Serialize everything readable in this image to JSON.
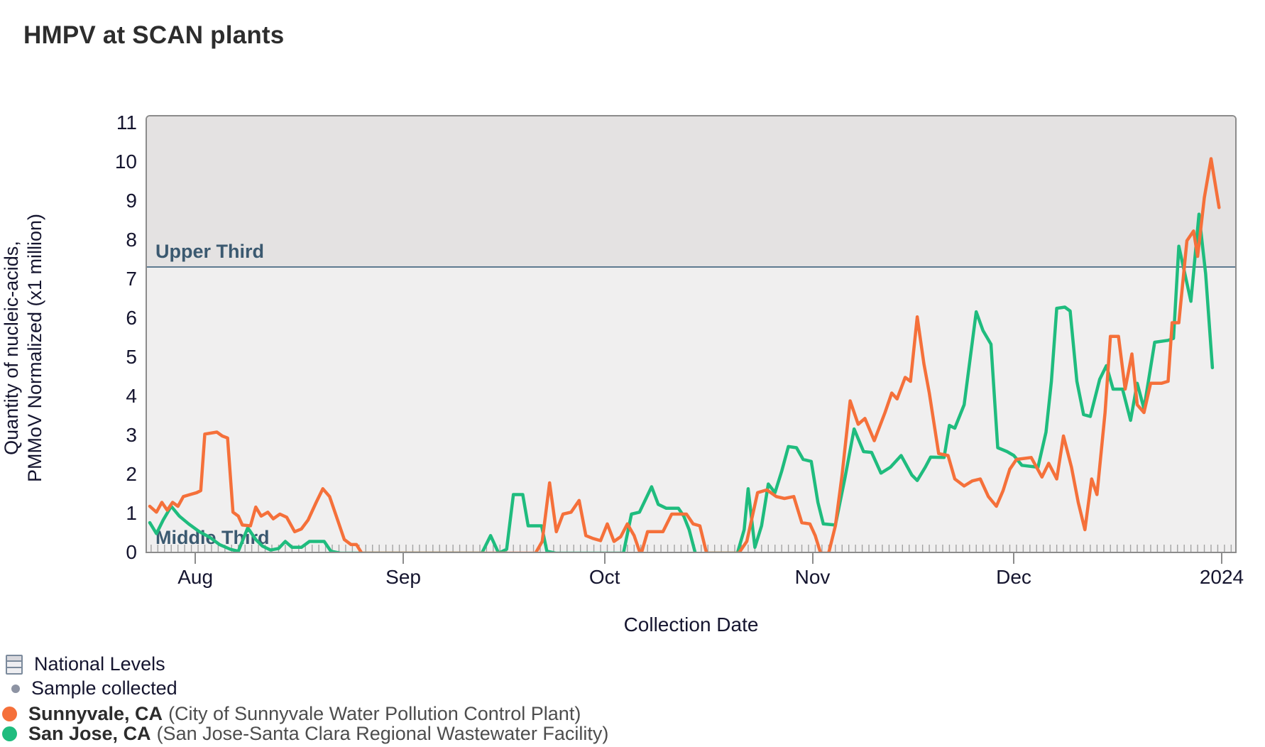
{
  "title": "HMPV at SCAN plants",
  "palette": {
    "sunnyvale": "#F5703A",
    "san_jose": "#1FBC7E",
    "upper_band": "#E4E2E2",
    "lower_band": "#F0EFEF",
    "band_boundary_line": "#5E7A90",
    "axis_text": "#15152F",
    "band_label_text": "#3B5970",
    "sample_tick": "#A3A3A3"
  },
  "y_axis": {
    "label_lines": [
      "Quantity of nucleic-acids,",
      "PMMoV Normalized (x1 million)"
    ],
    "ticks": [
      0,
      1,
      2,
      3,
      4,
      5,
      6,
      7,
      8,
      9,
      10,
      11
    ]
  },
  "x_axis": {
    "label": "Collection Date"
  },
  "bands": {
    "upper_label": "Upper Third",
    "middle_label": "Middle Third",
    "boundary_value": 7.35
  },
  "legend": {
    "national_levels": "National Levels",
    "sample_collected": "Sample collected"
  },
  "chart_data": {
    "type": "line",
    "title": "HMPV at SCAN plants",
    "xlabel": "Collection Date",
    "ylabel": "Quantity of nucleic-acids, PMMoV Normalized (x1 million)",
    "ylim": [
      0,
      11
    ],
    "grid": false,
    "legend_position": "bottom-left",
    "x_unit": "day index (0 = first plotted sample in late July; month ticks anchor the calendar)",
    "x_ticks": [
      {
        "label": "Aug",
        "day": 7
      },
      {
        "label": "Sep",
        "day": 38
      },
      {
        "label": "Oct",
        "day": 68
      },
      {
        "label": "Nov",
        "day": 99
      },
      {
        "label": "Dec",
        "day": 129
      },
      {
        "label": "2024",
        "day": 160
      }
    ],
    "reference_bands": {
      "boundary_value": 7.35,
      "upper_label": "Upper Third",
      "middle_label": "Middle Third"
    },
    "sample_rug": {
      "count": 162,
      "first_day": 0.2,
      "spacing_days": 1
    },
    "series": [
      {
        "name": "Sunnyvale, CA",
        "detail": "(City of Sunnyvale Water Pollution Control Plant)",
        "color": "#F5703A",
        "points": [
          [
            0,
            1.2
          ],
          [
            1,
            1.05
          ],
          [
            1.8,
            1.3
          ],
          [
            2.6,
            1.1
          ],
          [
            3.4,
            1.3
          ],
          [
            4.2,
            1.2
          ],
          [
            5,
            1.45
          ],
          [
            6,
            1.5
          ],
          [
            7,
            1.55
          ],
          [
            7.6,
            1.6
          ],
          [
            8.2,
            3.05
          ],
          [
            10,
            3.1
          ],
          [
            10.8,
            3.0
          ],
          [
            11.6,
            2.95
          ],
          [
            12.4,
            1.05
          ],
          [
            13.2,
            0.95
          ],
          [
            13.8,
            0.72
          ],
          [
            15,
            0.7
          ],
          [
            15.8,
            1.18
          ],
          [
            16.6,
            0.95
          ],
          [
            17.6,
            1.05
          ],
          [
            18.4,
            0.88
          ],
          [
            19.4,
            1.0
          ],
          [
            20.4,
            0.92
          ],
          [
            21.6,
            0.55
          ],
          [
            22.6,
            0.62
          ],
          [
            23.6,
            0.85
          ],
          [
            24.8,
            1.3
          ],
          [
            25.8,
            1.65
          ],
          [
            26.8,
            1.45
          ],
          [
            28,
            0.85
          ],
          [
            29,
            0.35
          ],
          [
            30,
            0.22
          ],
          [
            30.8,
            0.22
          ],
          [
            31.6,
            0
          ],
          [
            34,
            0
          ],
          [
            38,
            0
          ],
          [
            42,
            0
          ],
          [
            46,
            0
          ],
          [
            50,
            0
          ],
          [
            54,
            0
          ],
          [
            57.5,
            0
          ],
          [
            58.5,
            0.3
          ],
          [
            59.6,
            1.8
          ],
          [
            60.6,
            0.55
          ],
          [
            61.6,
            1.0
          ],
          [
            62.8,
            1.05
          ],
          [
            64,
            1.35
          ],
          [
            65,
            0.45
          ],
          [
            66,
            0.38
          ],
          [
            67.2,
            0.32
          ],
          [
            68.2,
            0.75
          ],
          [
            69.2,
            0.3
          ],
          [
            70.2,
            0.42
          ],
          [
            71.2,
            0.75
          ],
          [
            72.2,
            0.45
          ],
          [
            73.2,
            -0.05
          ],
          [
            74.2,
            0.55
          ],
          [
            76.5,
            0.55
          ],
          [
            77.8,
            1.0
          ],
          [
            80,
            1.0
          ],
          [
            81,
            0.75
          ],
          [
            82,
            0.7
          ],
          [
            83,
            0
          ],
          [
            85,
            0
          ],
          [
            87.8,
            0
          ],
          [
            89,
            0.3
          ],
          [
            90.6,
            1.55
          ],
          [
            92,
            1.62
          ],
          [
            93.4,
            1.45
          ],
          [
            94.6,
            1.4
          ],
          [
            96,
            1.45
          ],
          [
            97.2,
            0.78
          ],
          [
            98.4,
            0.75
          ],
          [
            99.2,
            0.45
          ],
          [
            100,
            0
          ],
          [
            101.2,
            0
          ],
          [
            102.2,
            0.7
          ],
          [
            103.2,
            2.0
          ],
          [
            104.4,
            3.9
          ],
          [
            105.6,
            3.3
          ],
          [
            106.6,
            3.45
          ],
          [
            108,
            2.88
          ],
          [
            109.6,
            3.6
          ],
          [
            110.6,
            4.1
          ],
          [
            111.4,
            3.95
          ],
          [
            112.6,
            4.5
          ],
          [
            113.4,
            4.4
          ],
          [
            114.4,
            6.05
          ],
          [
            115.4,
            4.85
          ],
          [
            116.2,
            4.1
          ],
          [
            117.6,
            2.55
          ],
          [
            119,
            2.5
          ],
          [
            120,
            1.9
          ],
          [
            121.4,
            1.72
          ],
          [
            122.6,
            1.85
          ],
          [
            123.8,
            1.9
          ],
          [
            125,
            1.45
          ],
          [
            126.2,
            1.2
          ],
          [
            127.2,
            1.6
          ],
          [
            128.2,
            2.15
          ],
          [
            129.2,
            2.4
          ],
          [
            131.4,
            2.45
          ],
          [
            133,
            1.95
          ],
          [
            134,
            2.3
          ],
          [
            135.2,
            1.9
          ],
          [
            136.2,
            3.0
          ],
          [
            137.4,
            2.2
          ],
          [
            138.4,
            1.3
          ],
          [
            139.4,
            0.6
          ],
          [
            140.4,
            1.9
          ],
          [
            141.2,
            1.5
          ],
          [
            142.4,
            3.6
          ],
          [
            143.2,
            5.55
          ],
          [
            144.4,
            5.55
          ],
          [
            145.4,
            4.2
          ],
          [
            146.4,
            5.1
          ],
          [
            147.2,
            3.8
          ],
          [
            148.2,
            3.6
          ],
          [
            149.2,
            4.35
          ],
          [
            150.8,
            4.35
          ],
          [
            151.8,
            4.4
          ],
          [
            152.4,
            5.9
          ],
          [
            153.4,
            5.9
          ],
          [
            154.6,
            8.0
          ],
          [
            155.6,
            8.25
          ],
          [
            156.2,
            7.6
          ],
          [
            157.2,
            9.1
          ],
          [
            158.2,
            10.1
          ],
          [
            159.4,
            8.85
          ]
        ]
      },
      {
        "name": "San Jose, CA",
        "detail": "(San Jose-Santa Clara Regional Wastewater Facility)",
        "color": "#1FBC7E",
        "points": [
          [
            0,
            0.78
          ],
          [
            1,
            0.5
          ],
          [
            2,
            0.85
          ],
          [
            3.2,
            1.2
          ],
          [
            4.4,
            0.95
          ],
          [
            5.8,
            0.75
          ],
          [
            7.4,
            0.55
          ],
          [
            9,
            0.4
          ],
          [
            10.4,
            0.22
          ],
          [
            12,
            0.1
          ],
          [
            13.2,
            0.05
          ],
          [
            14.6,
            0.65
          ],
          [
            15.8,
            0.35
          ],
          [
            16.8,
            0.18
          ],
          [
            18,
            0.08
          ],
          [
            19.2,
            0.12
          ],
          [
            20.2,
            0.3
          ],
          [
            21.2,
            0.15
          ],
          [
            22.6,
            0.15
          ],
          [
            23.8,
            0.3
          ],
          [
            26,
            0.3
          ],
          [
            27,
            0.05
          ],
          [
            28.4,
            0
          ],
          [
            31,
            0
          ],
          [
            34,
            0
          ],
          [
            38,
            0
          ],
          [
            42,
            0
          ],
          [
            46,
            0
          ],
          [
            49.5,
            0
          ],
          [
            50.8,
            0.45
          ],
          [
            52,
            0
          ],
          [
            53.2,
            0.1
          ],
          [
            54.2,
            1.5
          ],
          [
            55.6,
            1.5
          ],
          [
            56.4,
            0.7
          ],
          [
            58.4,
            0.7
          ],
          [
            59.2,
            0.05
          ],
          [
            60.5,
            0
          ],
          [
            63,
            0
          ],
          [
            66,
            0
          ],
          [
            69,
            0
          ],
          [
            70.6,
            0
          ],
          [
            71.8,
            1.0
          ],
          [
            73,
            1.05
          ],
          [
            74.8,
            1.7
          ],
          [
            75.8,
            1.25
          ],
          [
            77,
            1.15
          ],
          [
            78.8,
            1.15
          ],
          [
            79.6,
            0.95
          ],
          [
            80.4,
            0.6
          ],
          [
            81.4,
            -0.05
          ],
          [
            83,
            0
          ],
          [
            85.5,
            0
          ],
          [
            87.6,
            0
          ],
          [
            88.6,
            0.6
          ],
          [
            89.2,
            1.65
          ],
          [
            90.2,
            0.15
          ],
          [
            91.2,
            0.7
          ],
          [
            92.2,
            1.77
          ],
          [
            93.2,
            1.55
          ],
          [
            94.2,
            2.1
          ],
          [
            95.2,
            2.73
          ],
          [
            96.4,
            2.7
          ],
          [
            97.4,
            2.4
          ],
          [
            98.6,
            2.35
          ],
          [
            99.6,
            1.3
          ],
          [
            100.4,
            0.75
          ],
          [
            102.2,
            0.72
          ],
          [
            103.6,
            1.9
          ],
          [
            105,
            3.18
          ],
          [
            106.4,
            2.6
          ],
          [
            107.6,
            2.58
          ],
          [
            109,
            2.05
          ],
          [
            110.4,
            2.2
          ],
          [
            112,
            2.5
          ],
          [
            113.6,
            2.0
          ],
          [
            114.4,
            1.86
          ],
          [
            115.6,
            2.2
          ],
          [
            116.4,
            2.46
          ],
          [
            118.4,
            2.45
          ],
          [
            119.2,
            3.27
          ],
          [
            120,
            3.2
          ],
          [
            121.4,
            3.8
          ],
          [
            123.2,
            6.18
          ],
          [
            124.2,
            5.7
          ],
          [
            125.4,
            5.35
          ],
          [
            126.4,
            2.7
          ],
          [
            127.8,
            2.6
          ],
          [
            128.8,
            2.5
          ],
          [
            130,
            2.25
          ],
          [
            132.4,
            2.2
          ],
          [
            133.6,
            3.1
          ],
          [
            134.4,
            4.4
          ],
          [
            135.2,
            6.27
          ],
          [
            136.4,
            6.3
          ],
          [
            137.2,
            6.2
          ],
          [
            138.2,
            4.4
          ],
          [
            139.2,
            3.55
          ],
          [
            140.2,
            3.5
          ],
          [
            141.6,
            4.45
          ],
          [
            142.6,
            4.8
          ],
          [
            143.6,
            4.2
          ],
          [
            145,
            4.2
          ],
          [
            146.2,
            3.4
          ],
          [
            147.2,
            4.35
          ],
          [
            148.2,
            3.7
          ],
          [
            149.8,
            5.4
          ],
          [
            151.8,
            5.45
          ],
          [
            152.6,
            5.5
          ],
          [
            153.4,
            7.86
          ],
          [
            155.2,
            6.45
          ],
          [
            156.4,
            8.68
          ],
          [
            157.4,
            7.15
          ],
          [
            158.4,
            4.75
          ]
        ]
      }
    ]
  }
}
